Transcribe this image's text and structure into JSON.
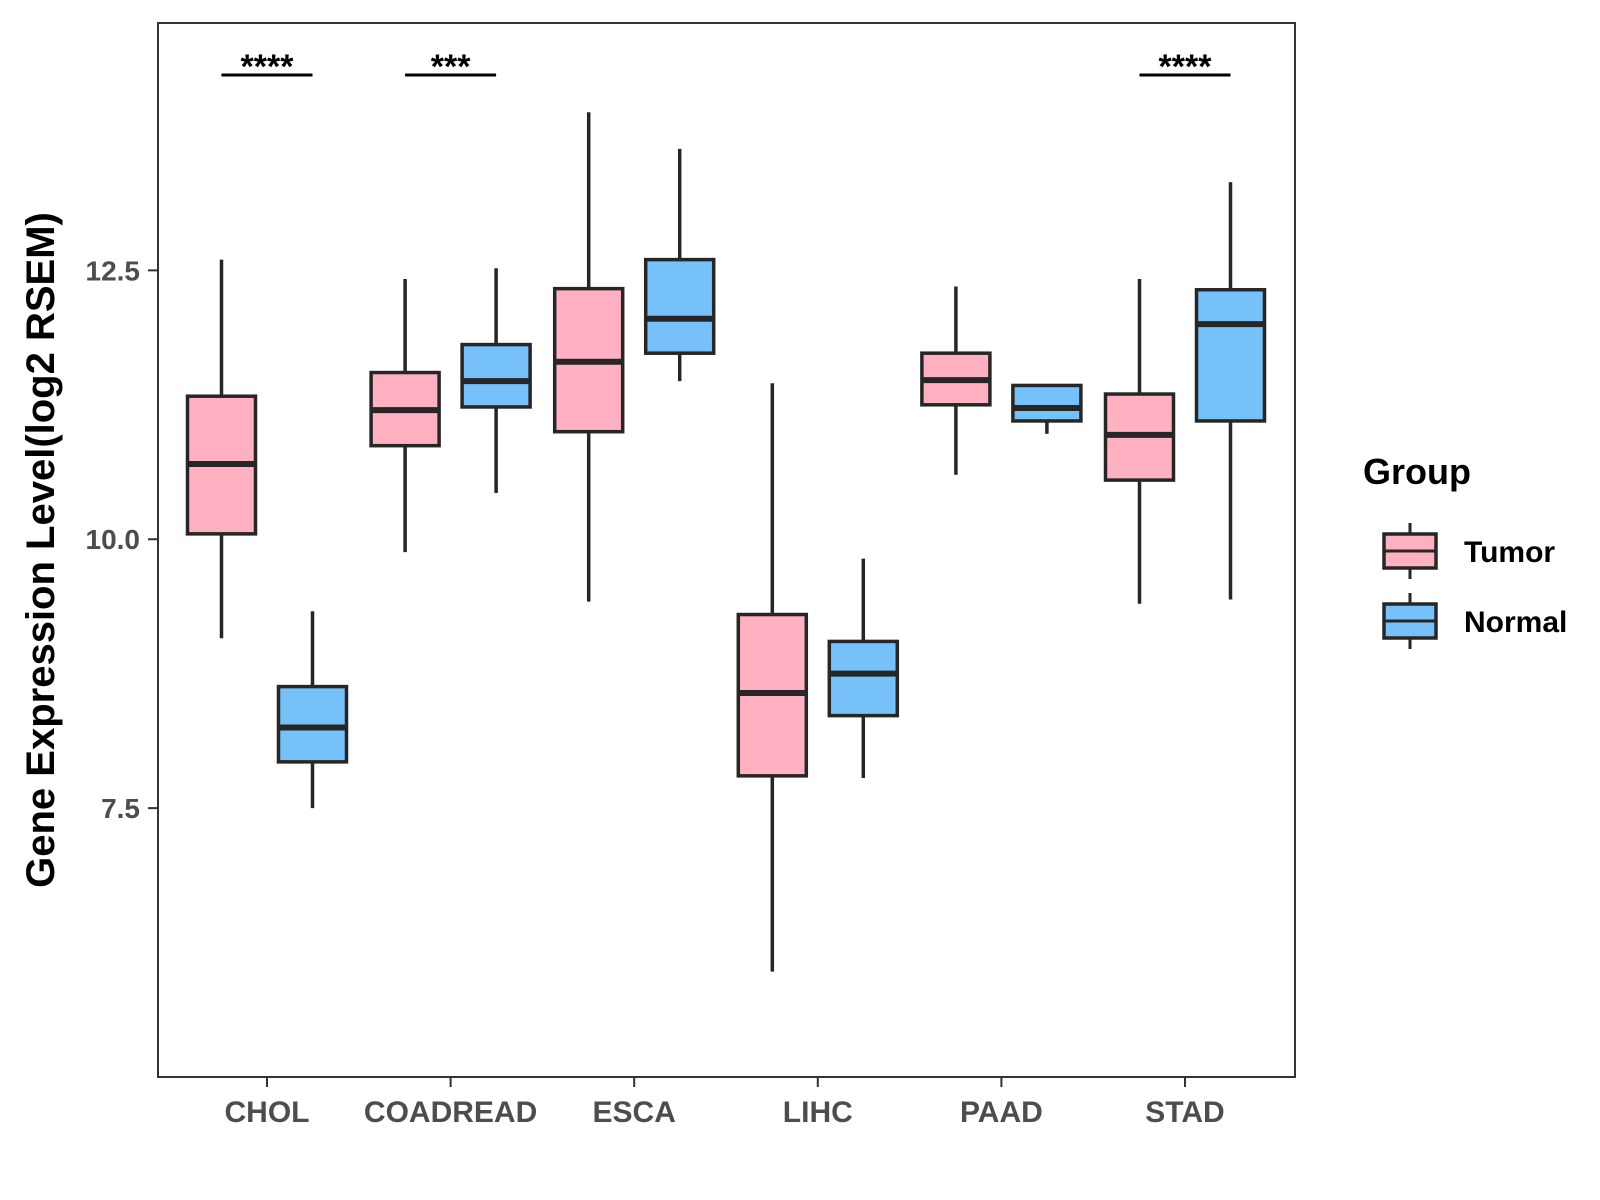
{
  "chart_data": {
    "type": "boxplot",
    "title": "",
    "xlabel": "",
    "ylabel": "Gene Expression Level(log2 RSEM)",
    "ylim": [
      5.0,
      14.8
    ],
    "yticks": [
      7.5,
      10.0,
      12.5
    ],
    "ytick_labels": [
      "7.5",
      "10.0",
      "12.5"
    ],
    "categories": [
      "CHOL",
      "COADREAD",
      "ESCA",
      "LIHC",
      "PAAD",
      "STAD"
    ],
    "series": [
      {
        "name": "Tumor",
        "color": "#ffb0c1",
        "boxes": [
          {
            "min": 9.08,
            "q1": 10.05,
            "median": 10.7,
            "q3": 11.33,
            "max": 12.6
          },
          {
            "min": 9.88,
            "q1": 10.87,
            "median": 11.2,
            "q3": 11.55,
            "max": 12.42
          },
          {
            "min": 9.42,
            "q1": 11.0,
            "median": 11.65,
            "q3": 12.33,
            "max": 13.97
          },
          {
            "min": 5.98,
            "q1": 7.8,
            "median": 8.57,
            "q3": 9.3,
            "max": 11.45
          },
          {
            "min": 10.6,
            "q1": 11.25,
            "median": 11.48,
            "q3": 11.73,
            "max": 12.35
          },
          {
            "min": 9.4,
            "q1": 10.55,
            "median": 10.97,
            "q3": 11.35,
            "max": 12.42
          }
        ]
      },
      {
        "name": "Normal",
        "color": "#76c1f9",
        "boxes": [
          {
            "min": 7.5,
            "q1": 7.93,
            "median": 8.25,
            "q3": 8.63,
            "max": 9.33
          },
          {
            "min": 10.43,
            "q1": 11.23,
            "median": 11.47,
            "q3": 11.81,
            "max": 12.52
          },
          {
            "min": 11.47,
            "q1": 11.73,
            "median": 12.05,
            "q3": 12.6,
            "max": 13.63
          },
          {
            "min": 7.78,
            "q1": 8.36,
            "median": 8.75,
            "q3": 9.05,
            "max": 9.82
          },
          {
            "min": 10.98,
            "q1": 11.1,
            "median": 11.22,
            "q3": 11.43,
            "max": 11.43
          },
          {
            "min": 9.44,
            "q1": 11.1,
            "median": 12.0,
            "q3": 12.32,
            "max": 13.32
          }
        ]
      }
    ],
    "significance": [
      {
        "category": "CHOL",
        "label": "****"
      },
      {
        "category": "COADREAD",
        "label": "***"
      },
      {
        "category": "ESCA",
        "label": ""
      },
      {
        "category": "LIHC",
        "label": ""
      },
      {
        "category": "PAAD",
        "label": ""
      },
      {
        "category": "STAD",
        "label": "****"
      }
    ],
    "legend": {
      "title": "Group",
      "position": "right",
      "entries": [
        "Tumor",
        "Normal"
      ]
    }
  }
}
